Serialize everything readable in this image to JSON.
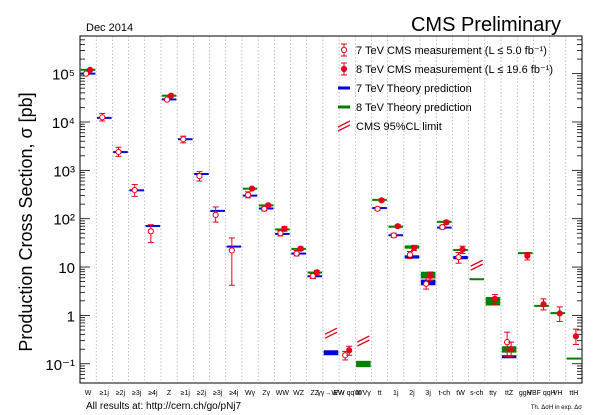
{
  "header": {
    "date": "Dec 2014",
    "title": "CMS Preliminary",
    "footer": "All results at: http://cern.ch/go/pNj7",
    "footnote": "Th. ΔσH in exp. Δσ"
  },
  "chart_data": {
    "type": "scatter",
    "title": "CMS Preliminary",
    "ylabel": "Production Cross Section,  σ [pb]",
    "yscale": "log",
    "ylim": [
      0.04,
      600000
    ],
    "ytick_labels": [
      "10⁻¹",
      "1",
      "10",
      "10²",
      "10³",
      "10⁴",
      "10⁵"
    ],
    "ytick_values": [
      0.1,
      1,
      10,
      100,
      1000,
      10000,
      100000
    ],
    "categories": [
      "W",
      "≥1j",
      "≥2j",
      "≥3j",
      "≥4j",
      "Z",
      "≥1j",
      "≥2j",
      "≥3j",
      "≥4j",
      "Wγ",
      "Zγ",
      "WW",
      "WZ",
      "ZZ",
      "γγ→WW",
      "EW qqW",
      "WVγ",
      "tt",
      "1j",
      "2j",
      "3j",
      "t-ch",
      "tW",
      "s-ch",
      "ttγ",
      "ttZ",
      "ggH",
      "VBF qqH",
      "VH",
      "ttH"
    ],
    "legend": [
      {
        "label": "7 TeV CMS measurement (L ≤ 5.0 fb⁻¹)",
        "marker": "open-circle",
        "color": "#e8001a"
      },
      {
        "label": "8 TeV CMS measurement (L ≤ 19.6 fb⁻¹)",
        "marker": "filled-circle",
        "color": "#e8001a"
      },
      {
        "label": "7 TeV Theory prediction",
        "marker": "blue-bar",
        "color": "#0000e0"
      },
      {
        "label": "8 TeV Theory prediction",
        "marker": "green-bar",
        "color": "#008000"
      },
      {
        "label": "CMS 95%CL limit",
        "marker": "limit",
        "color": "#e8001a"
      }
    ],
    "legend_position": "top-right",
    "series": [
      {
        "name": "7 TeV CMS measurement",
        "points": [
          {
            "x": 1,
            "y": 100000,
            "lo": 95000,
            "hi": 106000
          },
          {
            "x": 2,
            "y": 12500,
            "lo": 10500,
            "hi": 15000
          },
          {
            "x": 3,
            "y": 2400,
            "lo": 1950,
            "hi": 3000
          },
          {
            "x": 4,
            "y": 390,
            "lo": 290,
            "hi": 510
          },
          {
            "x": 5,
            "y": 55,
            "lo": 32,
            "hi": 75
          },
          {
            "x": 6,
            "y": 29000,
            "lo": 27500,
            "hi": 30500
          },
          {
            "x": 7,
            "y": 4400,
            "lo": 3700,
            "hi": 5100
          },
          {
            "x": 8,
            "y": 760,
            "lo": 600,
            "hi": 940
          },
          {
            "x": 9,
            "y": 120,
            "lo": 85,
            "hi": 175
          },
          {
            "x": 10,
            "y": 22,
            "lo": 4.2,
            "hi": 40
          },
          {
            "x": 11,
            "y": 310,
            "lo": 270,
            "hi": 360
          },
          {
            "x": 12,
            "y": 160,
            "lo": 145,
            "hi": 175
          },
          {
            "x": 13,
            "y": 50,
            "lo": 44,
            "hi": 56
          },
          {
            "x": 14,
            "y": 19,
            "lo": 17,
            "hi": 22
          },
          {
            "x": 15,
            "y": 6.5,
            "lo": 5.8,
            "hi": 7.3
          },
          {
            "x": 17,
            "y": 0.15,
            "lo": 0.12,
            "hi": 0.18
          },
          {
            "x": 19,
            "y": 160,
            "lo": 150,
            "hi": 172
          },
          {
            "x": 20,
            "y": 45,
            "lo": 41,
            "hi": 50
          },
          {
            "x": 21,
            "y": 18,
            "lo": 15,
            "hi": 21
          },
          {
            "x": 22,
            "y": 4.5,
            "lo": 3.5,
            "hi": 6
          },
          {
            "x": 23,
            "y": 67,
            "lo": 61,
            "hi": 73
          },
          {
            "x": 24,
            "y": 16,
            "lo": 12,
            "hi": 20
          },
          {
            "x": 27,
            "y": 0.28,
            "lo": 0.14,
            "hi": 0.45
          }
        ]
      },
      {
        "name": "8 TeV CMS measurement",
        "points": [
          {
            "x": 1,
            "y": 120000,
            "lo": 116000,
            "hi": 124000
          },
          {
            "x": 6,
            "y": 35000,
            "lo": 34000,
            "hi": 36500
          },
          {
            "x": 11,
            "y": 420,
            "lo": 400,
            "hi": 440
          },
          {
            "x": 12,
            "y": 190,
            "lo": 180,
            "hi": 200
          },
          {
            "x": 13,
            "y": 62,
            "lo": 55,
            "hi": 69
          },
          {
            "x": 14,
            "y": 24,
            "lo": 22,
            "hi": 26
          },
          {
            "x": 15,
            "y": 7.8,
            "lo": 7.1,
            "hi": 8.5
          },
          {
            "x": 17,
            "y": 0.19,
            "lo": 0.15,
            "hi": 0.23
          },
          {
            "x": 19,
            "y": 240,
            "lo": 225,
            "hi": 255
          },
          {
            "x": 20,
            "y": 70,
            "lo": 65,
            "hi": 75
          },
          {
            "x": 21,
            "y": 25,
            "lo": 22,
            "hi": 28
          },
          {
            "x": 22,
            "y": 6.5,
            "lo": 5.3,
            "hi": 7.9
          },
          {
            "x": 23,
            "y": 84,
            "lo": 77,
            "hi": 91
          },
          {
            "x": 24,
            "y": 23,
            "lo": 19,
            "hi": 27
          },
          {
            "x": 26,
            "y": 2.2,
            "lo": 1.7,
            "hi": 2.7
          },
          {
            "x": 27,
            "y": 0.2,
            "lo": 0.14,
            "hi": 0.28
          },
          {
            "x": 28,
            "y": 17,
            "lo": 14,
            "hi": 20
          },
          {
            "x": 29,
            "y": 1.7,
            "lo": 1.3,
            "hi": 2.2
          },
          {
            "x": 30,
            "y": 1.1,
            "lo": 0.75,
            "hi": 1.5
          },
          {
            "x": 31,
            "y": 0.37,
            "lo": 0.25,
            "hi": 0.52
          }
        ]
      },
      {
        "name": "7 TeV Theory prediction",
        "bands": [
          {
            "x": 1,
            "lo": 99000,
            "hi": 101000
          },
          {
            "x": 2,
            "lo": 12000,
            "hi": 12300
          },
          {
            "x": 3,
            "lo": 2350,
            "hi": 2420
          },
          {
            "x": 4,
            "lo": 380,
            "hi": 392
          },
          {
            "x": 5,
            "lo": 69,
            "hi": 72
          },
          {
            "x": 6,
            "lo": 29000,
            "hi": 29600
          },
          {
            "x": 7,
            "lo": 4350,
            "hi": 4450
          },
          {
            "x": 8,
            "lo": 830,
            "hi": 850
          },
          {
            "x": 9,
            "lo": 143,
            "hi": 147
          },
          {
            "x": 10,
            "lo": 26,
            "hi": 27
          },
          {
            "x": 11,
            "lo": 295,
            "hi": 305
          },
          {
            "x": 12,
            "lo": 160,
            "hi": 165
          },
          {
            "x": 13,
            "lo": 47,
            "hi": 50
          },
          {
            "x": 14,
            "lo": 18.5,
            "hi": 19.5
          },
          {
            "x": 15,
            "lo": 6.3,
            "hi": 6.6
          },
          {
            "x": 16,
            "lo": 0.15,
            "hi": 0.19
          },
          {
            "x": 19,
            "lo": 160,
            "hi": 172
          },
          {
            "x": 20,
            "lo": 44,
            "hi": 47
          },
          {
            "x": 21,
            "lo": 15,
            "hi": 17.5
          },
          {
            "x": 22,
            "lo": 4.2,
            "hi": 5.5
          },
          {
            "x": 23,
            "lo": 64,
            "hi": 67
          },
          {
            "x": 24,
            "lo": 14.5,
            "hi": 17
          },
          {
            "x": 27,
            "lo": 0.13,
            "hi": 0.15
          }
        ]
      },
      {
        "name": "8 TeV Theory prediction",
        "bands": [
          {
            "x": 1,
            "lo": 119000,
            "hi": 121000
          },
          {
            "x": 6,
            "lo": 34500,
            "hi": 35500
          },
          {
            "x": 11,
            "lo": 410,
            "hi": 425
          },
          {
            "x": 12,
            "lo": 185,
            "hi": 192
          },
          {
            "x": 13,
            "lo": 58,
            "hi": 62
          },
          {
            "x": 14,
            "lo": 23,
            "hi": 24.5
          },
          {
            "x": 15,
            "lo": 7.5,
            "hi": 7.9
          },
          {
            "x": 18,
            "lo": 0.085,
            "hi": 0.115
          },
          {
            "x": 19,
            "lo": 235,
            "hi": 255
          },
          {
            "x": 20,
            "lo": 65,
            "hi": 72
          },
          {
            "x": 21,
            "lo": 24,
            "hi": 28
          },
          {
            "x": 22,
            "lo": 5.8,
            "hi": 8
          },
          {
            "x": 23,
            "lo": 84,
            "hi": 88
          },
          {
            "x": 24,
            "lo": 21.5,
            "hi": 23.5
          },
          {
            "x": 25,
            "lo": 5.5,
            "hi": 5.7
          },
          {
            "x": 26,
            "lo": 1.6,
            "hi": 2.4
          },
          {
            "x": 27,
            "lo": 0.17,
            "hi": 0.23
          },
          {
            "x": 28,
            "lo": 19.2,
            "hi": 19.6
          },
          {
            "x": 29,
            "lo": 1.55,
            "hi": 1.6
          },
          {
            "x": 30,
            "lo": 1.1,
            "hi": 1.13
          },
          {
            "x": 31,
            "lo": 0.126,
            "hi": 0.13
          }
        ]
      },
      {
        "name": "CMS 95%CL limit",
        "limits": [
          {
            "x": 16,
            "y": 0.45
          },
          {
            "x": 18,
            "y": 0.31
          },
          {
            "x": 25,
            "y": 11.5
          }
        ]
      }
    ]
  }
}
